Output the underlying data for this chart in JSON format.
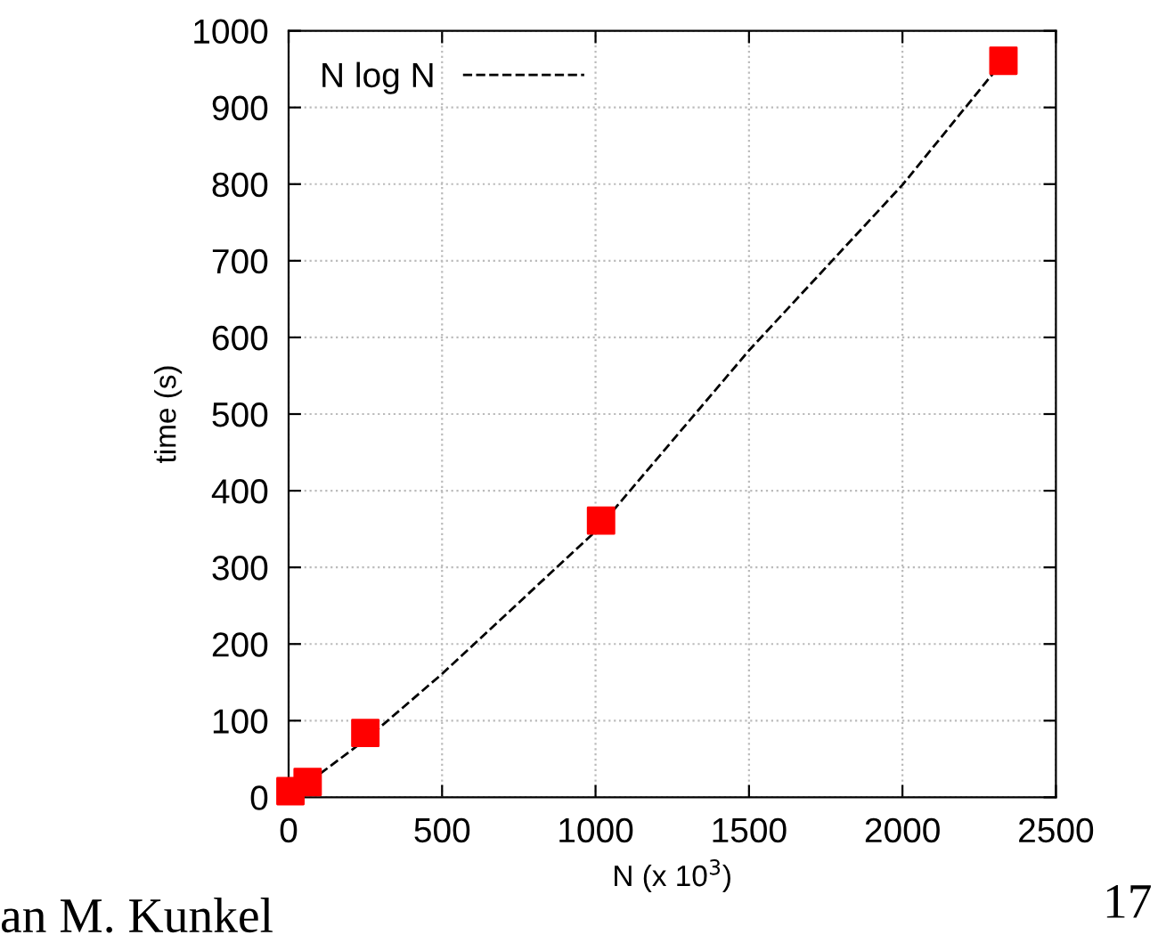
{
  "chart_data": {
    "type": "scatter",
    "xlabel": "N (x 10$^{3}$)",
    "ylabel": "time (s)",
    "x": [
      6,
      62,
      250,
      1018,
      2329
    ],
    "series": [
      {
        "color": "#ff0000",
        "marker": "square",
        "values": [
          8,
          20,
          84,
          361,
          961
        ]
      },
      {
        "type": "line",
        "name": "N log N",
        "color": "#000000",
        "line_style": "dashed",
        "marker": "none",
        "x": [
          0,
          250,
          500,
          1000,
          1500,
          2000,
          2329
        ],
        "values": [
          0,
          75,
          161,
          347,
          583,
          799,
          961
        ]
      }
    ],
    "xlim": [
      0,
      2500
    ],
    "xticks": [
      0,
      500,
      1000,
      1500,
      2000,
      2500
    ],
    "ylim": [
      0,
      1000
    ],
    "yticks": [
      0,
      100,
      200,
      300,
      400,
      500,
      600,
      700,
      800,
      900,
      1000
    ],
    "grid": true,
    "legend": "top left",
    "annotations": [
      "an M. Kunkel",
      "17"
    ]
  }
}
